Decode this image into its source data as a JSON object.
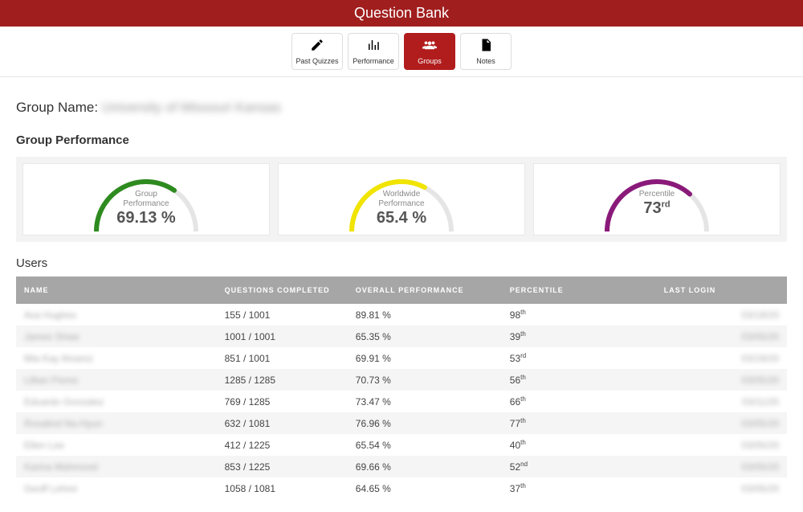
{
  "header": {
    "title": "Question Bank"
  },
  "tabs": [
    {
      "label": "Past Quizzes",
      "icon": "✎",
      "active": false
    },
    {
      "label": "Performance",
      "icon": "bar",
      "active": false
    },
    {
      "label": "Groups",
      "icon": "people",
      "active": true
    },
    {
      "label": "Notes",
      "icon": "doc",
      "active": false
    }
  ],
  "group": {
    "label_prefix": "Group Name:",
    "name_blurred": "University of Missouri Kansas"
  },
  "section_titles": {
    "group_performance": "Group Performance",
    "users": "Users"
  },
  "gauges": [
    {
      "label_line1": "Group",
      "label_line2": "Performance",
      "value": "69.13 %",
      "pct": 69.13,
      "color": "#2e8b1f",
      "track": "#e5e5e5"
    },
    {
      "label_line1": "Worldwide",
      "label_line2": "Performance",
      "value": "65.4 %",
      "pct": 65.4,
      "color": "#f0e400",
      "track": "#e5e5e5"
    },
    {
      "label_line1": "",
      "label_line2": "Percentile",
      "value": "73",
      "suffix": "rd",
      "pct": 73,
      "color": "#8a1a7a",
      "track": "#e5e5e5"
    }
  ],
  "table": {
    "columns": [
      "NAME",
      "QUESTIONS COMPLETED",
      "OVERALL PERFORMANCE",
      "PERCENTILE",
      "LAST LOGIN"
    ],
    "rows": [
      {
        "name": "Ava Hughes",
        "q": "155 / 1001",
        "perf": "89.81 %",
        "pct": "98",
        "pct_suf": "th",
        "login": "03/19/20"
      },
      {
        "name": "James Shaw",
        "q": "1001 / 1001",
        "perf": "65.35 %",
        "pct": "39",
        "pct_suf": "th",
        "login": "03/05/20"
      },
      {
        "name": "Mia Kay Alvarez",
        "q": "851 / 1001",
        "perf": "69.91 %",
        "pct": "53",
        "pct_suf": "rd",
        "login": "03/19/20"
      },
      {
        "name": "Lillian Flores",
        "q": "1285 / 1285",
        "perf": "70.73 %",
        "pct": "56",
        "pct_suf": "th",
        "login": "03/05/20"
      },
      {
        "name": "Eduardo Gonzalez",
        "q": "769 / 1285",
        "perf": "73.47 %",
        "pct": "66",
        "pct_suf": "th",
        "login": "03/11/20"
      },
      {
        "name": "Rosalind Na-Hyun",
        "q": "632 / 1081",
        "perf": "76.96 %",
        "pct": "77",
        "pct_suf": "th",
        "login": "03/05/20"
      },
      {
        "name": "Ellen Lee",
        "q": "412 / 1225",
        "perf": "65.54 %",
        "pct": "40",
        "pct_suf": "th",
        "login": "03/05/20"
      },
      {
        "name": "Karina Mahmood",
        "q": "853 / 1225",
        "perf": "69.66 %",
        "pct": "52",
        "pct_suf": "nd",
        "login": "03/05/20"
      },
      {
        "name": "Geoff Lehrer",
        "q": "1058 / 1081",
        "perf": "64.65 %",
        "pct": "37",
        "pct_suf": "th",
        "login": "03/05/20"
      }
    ]
  },
  "colors": {
    "header_bg": "#a11e1e",
    "tab_active_bg": "#b11c1c",
    "table_header_bg": "#a6a6a6"
  }
}
